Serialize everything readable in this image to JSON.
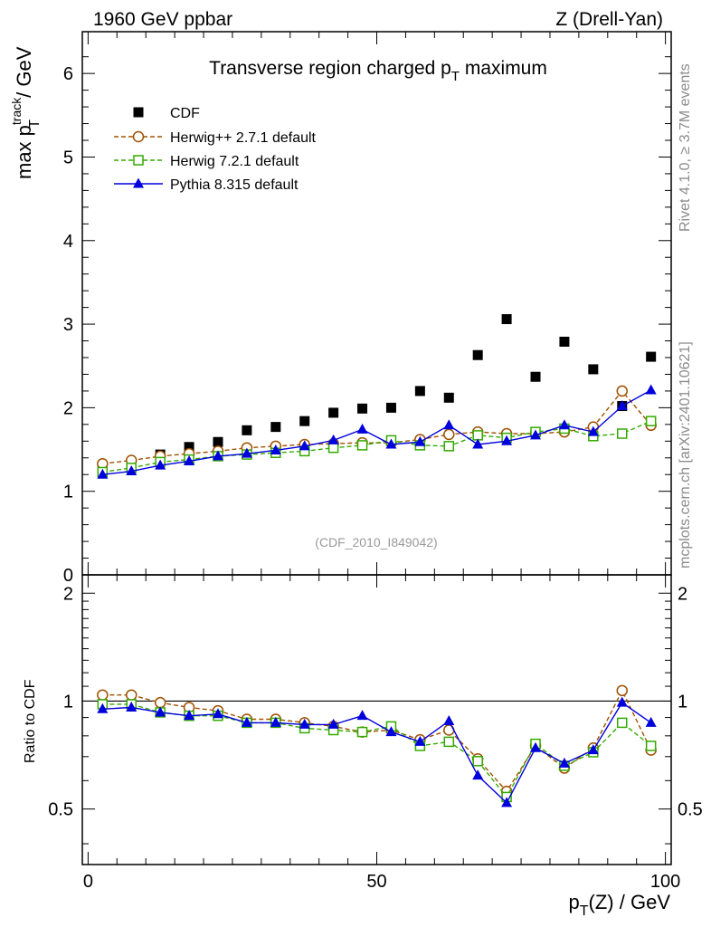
{
  "header": {
    "left": "1960 GeV ppbar",
    "right": "Z (Drell-Yan)"
  },
  "side_text": {
    "rivet": "Rivet 4.1.0, ≥ 3.7M events",
    "mcplots": "mcplots.cern.ch [arXiv:2401.10621]"
  },
  "chart_data": {
    "type": "line",
    "title": "Transverse region charged p_T maximum",
    "title_main": "Transverse region charged p",
    "title_sub": "T",
    "title_tail": " maximum",
    "watermark": "(CDF_2010_I849042)",
    "xlabel_main": "p",
    "xlabel_sub": "T",
    "xlabel_tail": "(Z) / GeV",
    "ylabel_main": "max p",
    "ylabel_sup": "track",
    "ylabel_sub": "T",
    "ylabel_tail": " / GeV",
    "ratio_ylabel": "Ratio to CDF",
    "xlim": [
      -1,
      101
    ],
    "ylim": [
      0,
      6.5
    ],
    "ratio_ylim": [
      0.35,
      2.25
    ],
    "x_ticks": [
      0,
      50,
      100
    ],
    "x_tick_labels": [
      "0",
      "50",
      "100"
    ],
    "y_ticks": [
      0,
      1,
      2,
      3,
      4,
      5,
      6
    ],
    "y_tick_labels": [
      "0",
      "1",
      "2",
      "3",
      "4",
      "5",
      "6"
    ],
    "ratio_ticks": [
      0.5,
      1,
      2
    ],
    "ratio_tick_labels": [
      "0.5",
      "1",
      "2"
    ],
    "legend_position": "top-left",
    "x": [
      2.5,
      7.5,
      12.5,
      17.5,
      22.5,
      27.5,
      32.5,
      37.5,
      42.5,
      47.5,
      52.5,
      57.5,
      62.5,
      67.5,
      72.5,
      77.5,
      82.5,
      87.5,
      92.5,
      97.5
    ],
    "series": [
      {
        "name": "CDF",
        "label": "CDF",
        "color": "#000000",
        "marker": "square-filled",
        "line": "none",
        "values": [
          1.25,
          1.31,
          1.44,
          1.53,
          1.59,
          1.73,
          1.77,
          1.84,
          1.94,
          1.99,
          2.0,
          2.2,
          2.12,
          2.63,
          3.06,
          2.37,
          2.79,
          2.46,
          2.02,
          2.61
        ],
        "ratio": [
          1,
          1,
          1,
          1,
          1,
          1,
          1,
          1,
          1,
          1,
          1,
          1,
          1,
          1,
          1,
          1,
          1,
          1,
          1,
          1
        ]
      },
      {
        "name": "Herwig++ 2.7.1",
        "label": "Herwig++ 2.7.1 default",
        "color": "#a05000",
        "marker": "circle-open",
        "line": "dashed",
        "values": [
          1.33,
          1.37,
          1.42,
          1.45,
          1.48,
          1.52,
          1.54,
          1.56,
          1.57,
          1.58,
          1.58,
          1.62,
          1.68,
          1.71,
          1.69,
          1.69,
          1.71,
          1.77,
          2.2,
          1.79
        ],
        "ratio": [
          1.04,
          1.04,
          0.99,
          0.96,
          0.94,
          0.89,
          0.89,
          0.87,
          0.85,
          0.82,
          0.83,
          0.78,
          0.83,
          0.69,
          0.56,
          0.75,
          0.65,
          0.74,
          1.07,
          0.73
        ]
      },
      {
        "name": "Herwig 7.2.1",
        "label": "Herwig 7.2.1 default",
        "color": "#33aa00",
        "marker": "square-open",
        "line": "dashed",
        "values": [
          1.23,
          1.28,
          1.35,
          1.38,
          1.42,
          1.44,
          1.46,
          1.48,
          1.52,
          1.55,
          1.61,
          1.55,
          1.54,
          1.67,
          1.64,
          1.71,
          1.75,
          1.66,
          1.69,
          1.84
        ],
        "ratio": [
          0.98,
          0.98,
          0.93,
          0.91,
          0.91,
          0.87,
          0.87,
          0.84,
          0.83,
          0.82,
          0.85,
          0.75,
          0.77,
          0.68,
          0.54,
          0.76,
          0.66,
          0.72,
          0.87,
          0.75
        ]
      },
      {
        "name": "Pythia 8.315",
        "label": "Pythia 8.315 default",
        "color": "#0000dd",
        "marker": "triangle-filled",
        "line": "solid",
        "values": [
          1.2,
          1.24,
          1.31,
          1.36,
          1.42,
          1.45,
          1.49,
          1.54,
          1.61,
          1.74,
          1.56,
          1.59,
          1.79,
          1.56,
          1.6,
          1.67,
          1.79,
          1.71,
          2.02,
          2.21
        ],
        "ratio": [
          0.95,
          0.96,
          0.93,
          0.91,
          0.92,
          0.87,
          0.87,
          0.86,
          0.86,
          0.91,
          0.82,
          0.77,
          0.88,
          0.62,
          0.52,
          0.74,
          0.67,
          0.73,
          0.99,
          0.87
        ]
      }
    ]
  }
}
